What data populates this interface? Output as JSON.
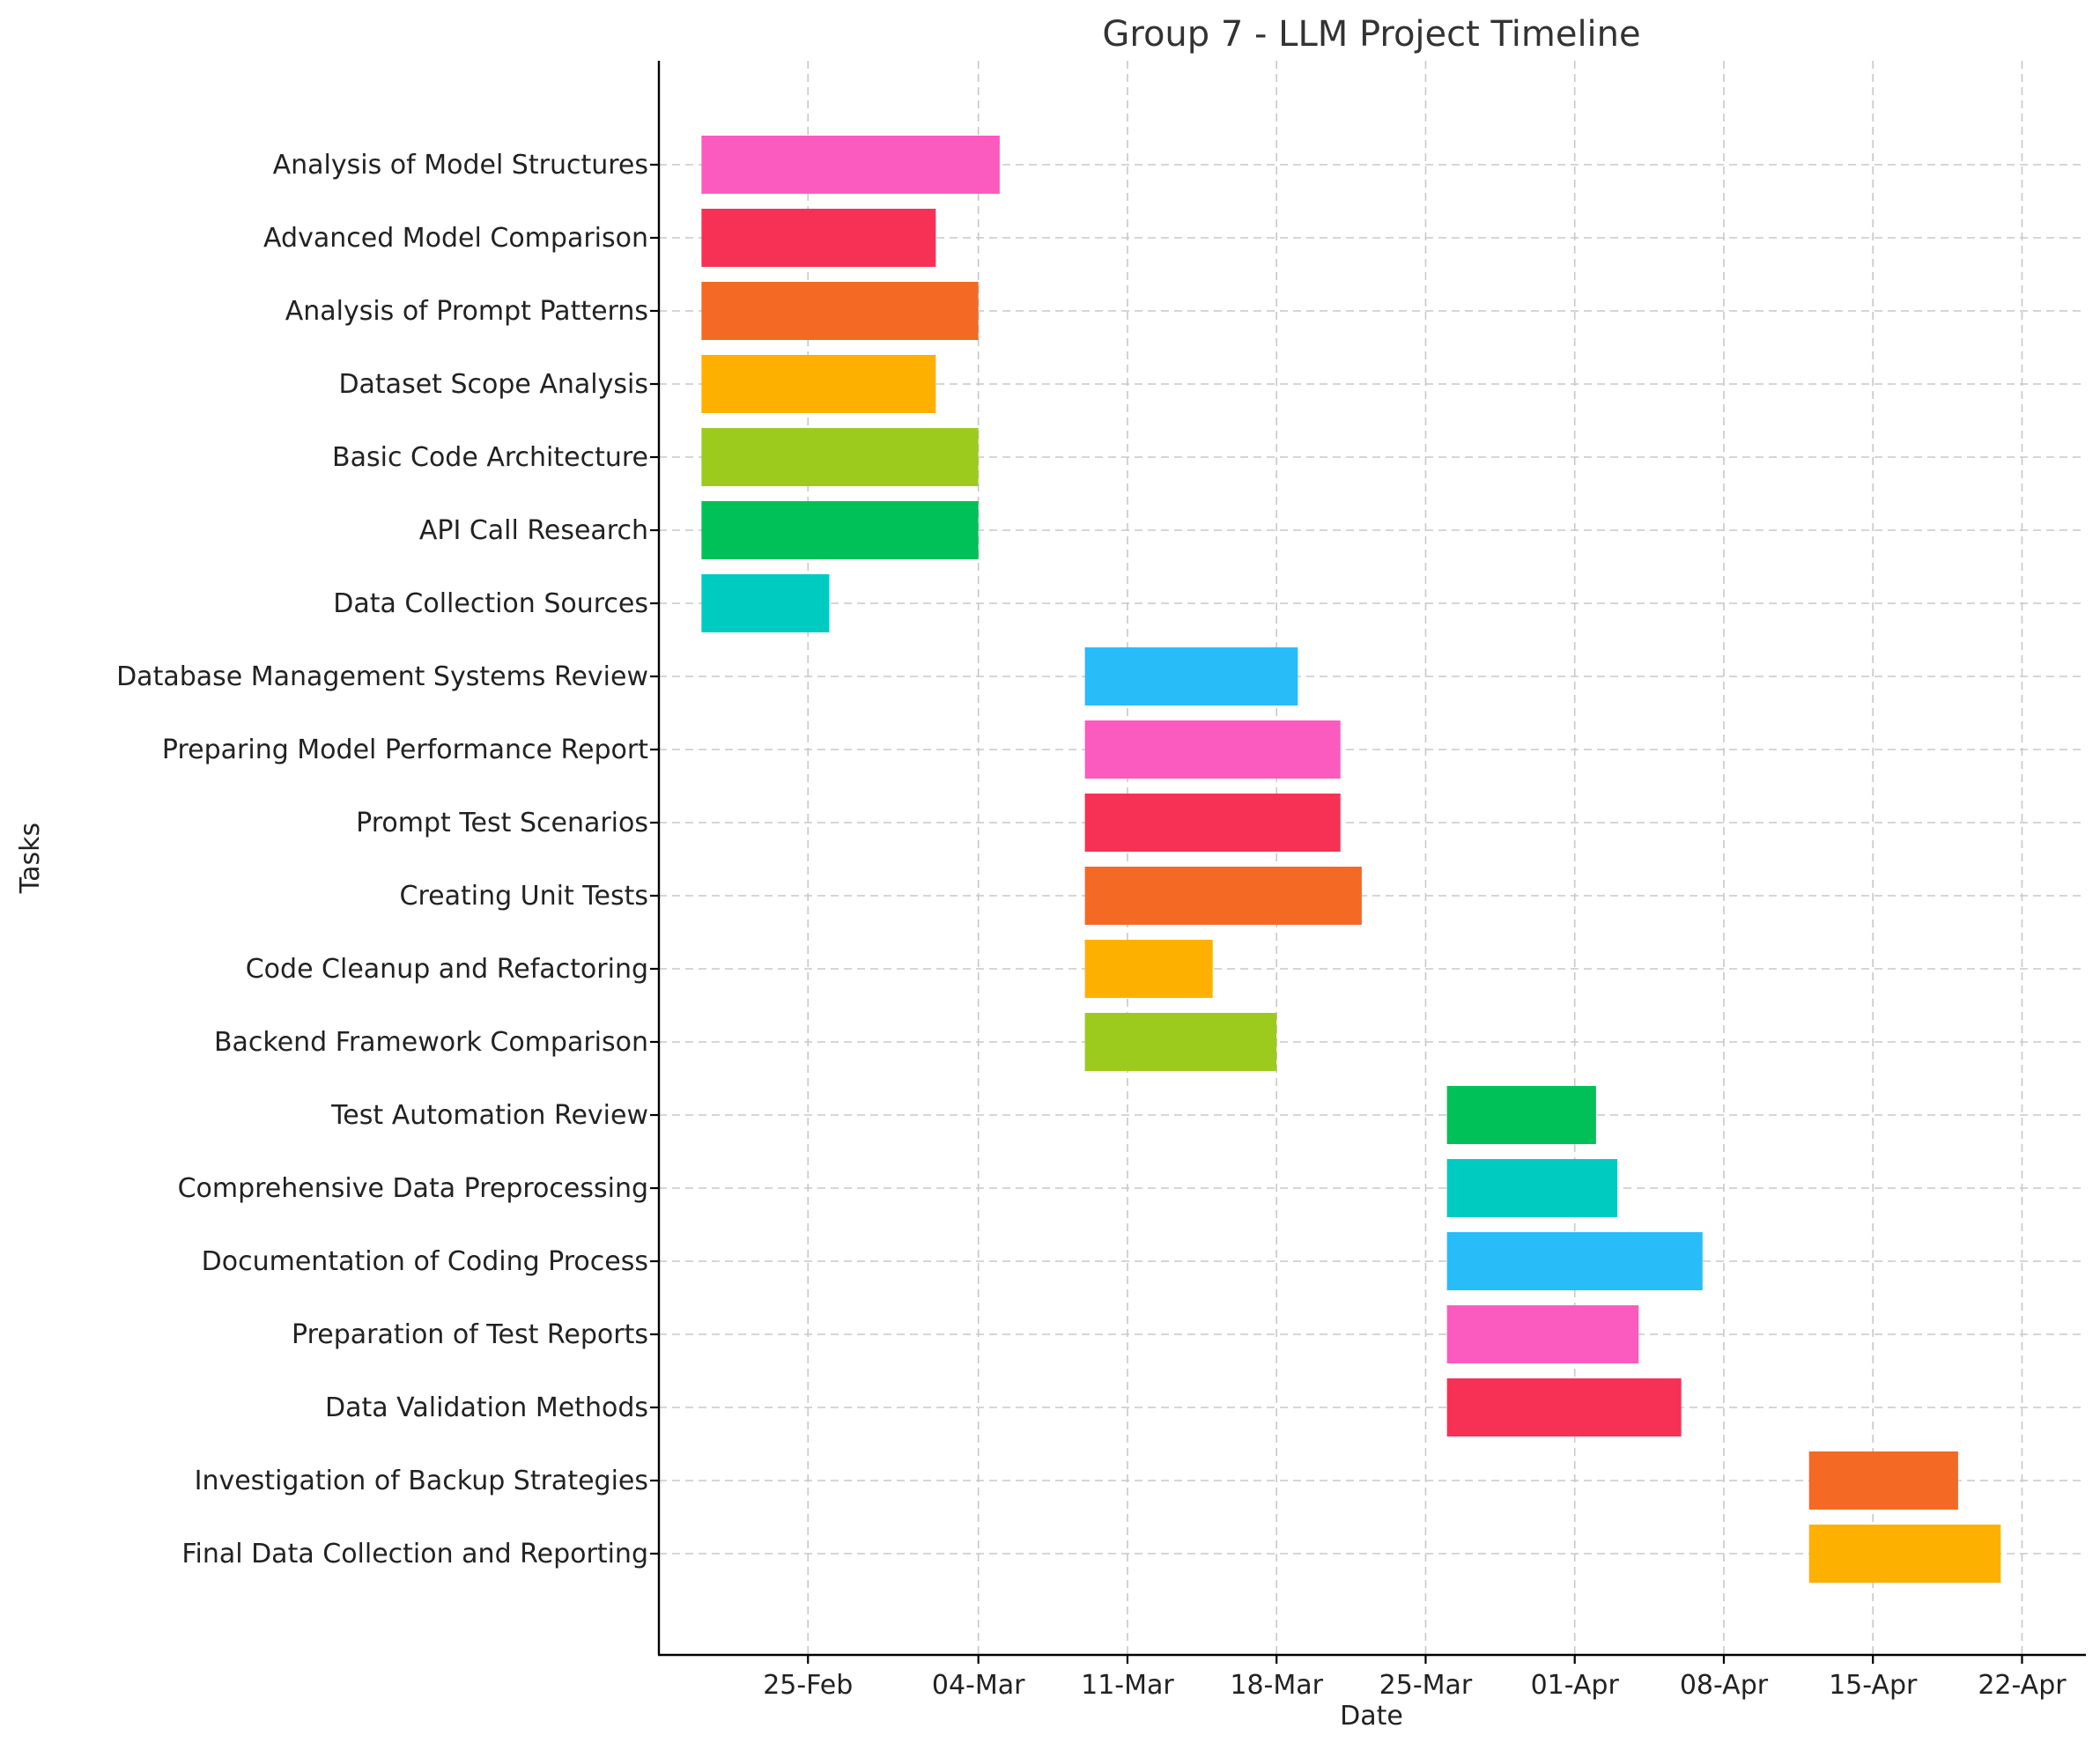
{
  "chart_data": {
    "type": "bar",
    "orientation": "horizontal",
    "title": "Group 7 - LLM Project Timeline",
    "xlabel": "Date",
    "ylabel": "Tasks",
    "xlim": [
      "2024-02-18",
      "2024-04-25"
    ],
    "x_ticks": [
      "2024-02-25",
      "2024-03-04",
      "2024-03-11",
      "2024-03-18",
      "2024-03-25",
      "2024-04-01",
      "2024-04-08",
      "2024-04-15",
      "2024-04-22"
    ],
    "x_tick_labels": [
      "25-Feb",
      "04-Mar",
      "11-Mar",
      "18-Mar",
      "25-Mar",
      "01-Apr",
      "08-Apr",
      "15-Apr",
      "22-Apr"
    ],
    "grid": true,
    "tasks": [
      {
        "name": "Analysis of Model Structures",
        "start": "2024-02-20",
        "end": "2024-03-05",
        "color": "#FB5BBE"
      },
      {
        "name": "Advanced Model Comparison",
        "start": "2024-02-20",
        "end": "2024-03-02",
        "color": "#F73155"
      },
      {
        "name": "Analysis of Prompt Patterns",
        "start": "2024-02-20",
        "end": "2024-03-04",
        "color": "#F46A24"
      },
      {
        "name": "Dataset Scope Analysis",
        "start": "2024-02-20",
        "end": "2024-03-02",
        "color": "#FEB000"
      },
      {
        "name": "Basic Code Architecture",
        "start": "2024-02-20",
        "end": "2024-03-04",
        "color": "#9DCB1D"
      },
      {
        "name": "API Call Research",
        "start": "2024-02-20",
        "end": "2024-03-04",
        "color": "#00C158"
      },
      {
        "name": "Data Collection Sources",
        "start": "2024-02-20",
        "end": "2024-02-26",
        "color": "#00CBC1"
      },
      {
        "name": "Database Management Systems Review",
        "start": "2024-03-09",
        "end": "2024-03-19",
        "color": "#28BCF9"
      },
      {
        "name": "Preparing Model Performance Report",
        "start": "2024-03-09",
        "end": "2024-03-21",
        "color": "#FB5BBE"
      },
      {
        "name": "Prompt Test Scenarios",
        "start": "2024-03-09",
        "end": "2024-03-21",
        "color": "#F73155"
      },
      {
        "name": "Creating Unit Tests",
        "start": "2024-03-09",
        "end": "2024-03-22",
        "color": "#F46A24"
      },
      {
        "name": "Code Cleanup and Refactoring",
        "start": "2024-03-09",
        "end": "2024-03-15",
        "color": "#FEB000"
      },
      {
        "name": "Backend Framework Comparison",
        "start": "2024-03-09",
        "end": "2024-03-18",
        "color": "#9DCB1D"
      },
      {
        "name": "Test Automation Review",
        "start": "2024-03-26",
        "end": "2024-04-02",
        "color": "#00C158"
      },
      {
        "name": "Comprehensive Data Preprocessing",
        "start": "2024-03-26",
        "end": "2024-04-03",
        "color": "#00CBC1"
      },
      {
        "name": "Documentation of Coding Process",
        "start": "2024-03-26",
        "end": "2024-04-07",
        "color": "#28BCF9"
      },
      {
        "name": "Preparation of Test Reports",
        "start": "2024-03-26",
        "end": "2024-04-04",
        "color": "#FB5BBE"
      },
      {
        "name": "Data Validation Methods",
        "start": "2024-03-26",
        "end": "2024-04-06",
        "color": "#F73155"
      },
      {
        "name": "Investigation of Backup Strategies",
        "start": "2024-04-12",
        "end": "2024-04-19",
        "color": "#F46A24"
      },
      {
        "name": "Final Data Collection and Reporting",
        "start": "2024-04-12",
        "end": "2024-04-21",
        "color": "#FEB000"
      }
    ]
  }
}
